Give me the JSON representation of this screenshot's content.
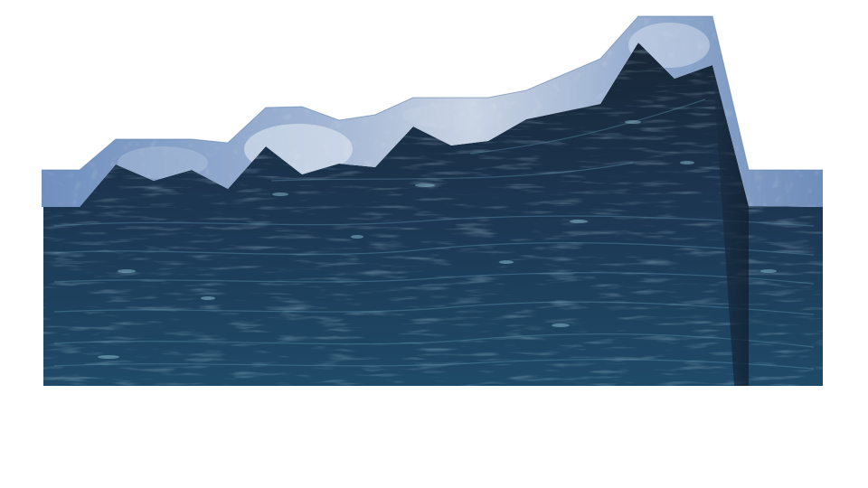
{
  "scene": {
    "kind": "terrain-block-diagram",
    "colors": {
      "background": "#ffffff",
      "surface_light": "#c7d3e3",
      "surface_mid": "#7f9cc4",
      "surface_dark": "#4c6c9b",
      "rock_top": "#1b2c3e",
      "rock_mid": "#1f3a55",
      "rock_bottom": "#1d4766",
      "streak_light": "#7fb3c9",
      "streak_dark": "#0f1c2a"
    }
  }
}
